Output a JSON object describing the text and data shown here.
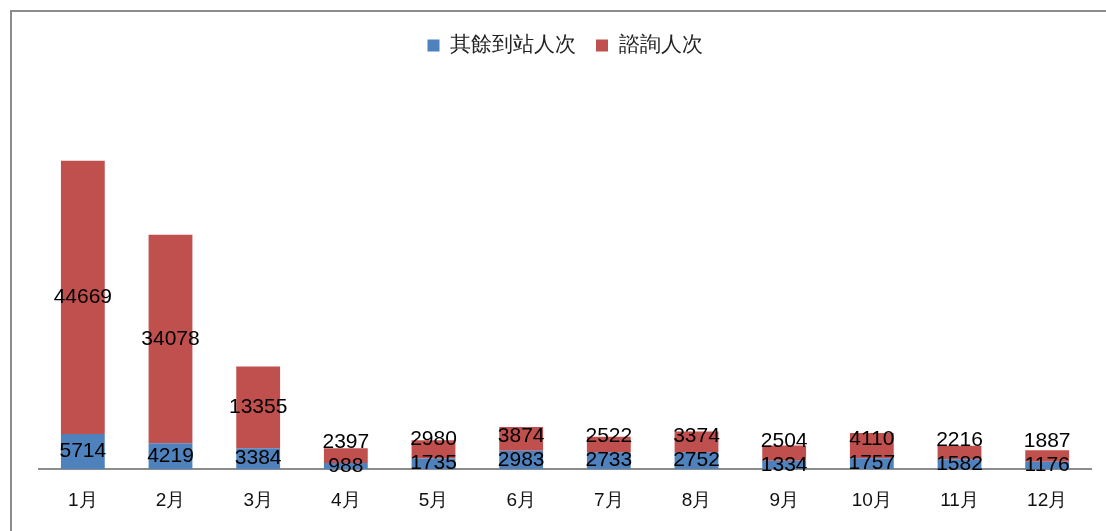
{
  "chart_data": {
    "type": "bar",
    "stacked": true,
    "legend": "top",
    "tick_labels": "x",
    "data_labels": true,
    "categories": [
      "1月",
      "2月",
      "3月",
      "4月",
      "5月",
      "6月",
      "7月",
      "8月",
      "9月",
      "10月",
      "11月",
      "12月"
    ],
    "series": [
      {
        "name": "其餘到站人次",
        "color": "#4f81bd",
        "values": [
          5714,
          4219,
          3384,
          988,
          1735,
          2983,
          2733,
          2752,
          1334,
          1757,
          1582,
          1176
        ]
      },
      {
        "name": "諮詢人次",
        "color": "#c0504d",
        "values": [
          44669,
          34078,
          13355,
          2397,
          2980,
          3874,
          2522,
          3374,
          2504,
          4110,
          2216,
          1887
        ]
      }
    ]
  }
}
